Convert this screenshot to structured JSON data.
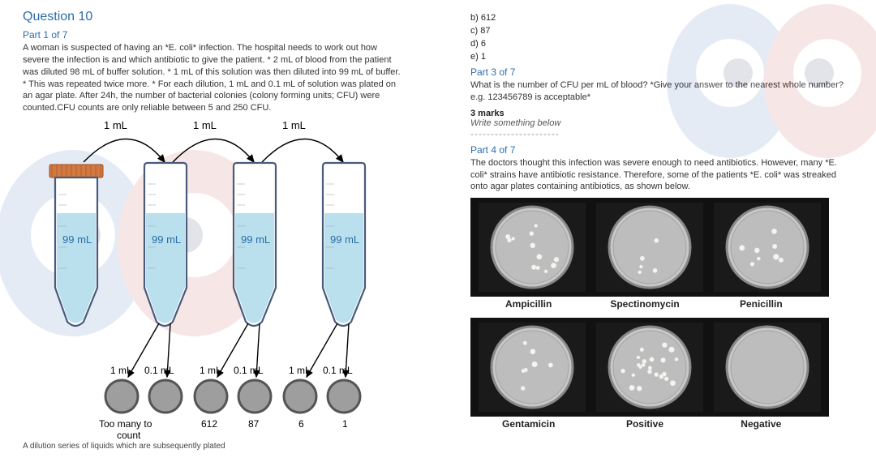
{
  "question_title": "Question 10",
  "part1": {
    "label": "Part 1 of 7",
    "text": "A woman is suspected of having an *E. coli* infection. The hospital needs to work out how severe the infection is and which antibiotic to give the patient. * 2 mL of blood from the patient was diluted 98 mL of buffer solution. * 1 mL of this solution was then diluted into 99 mL of buffer. * This was repeated twice more. * For each dilution, 1 mL and 0.1 mL of solution was plated on an agar plate. After 24h, the number of bacterial colonies (colony forming units; CFU) were counted.CFU counts are only reliable between 5 and 250 CFU."
  },
  "diagram": {
    "top_labels": [
      "1 mL",
      "1 mL",
      "1 mL"
    ],
    "tube_labels": [
      "99 mL",
      "99 mL",
      "99 mL",
      "99 mL"
    ],
    "plate_labels": [
      "1 mL",
      "0.1 mL",
      "1 mL",
      "0.1 mL",
      "1 mL",
      "0.1 mL"
    ],
    "counts": [
      "Too many to",
      "count",
      "612",
      "87",
      "6",
      "1"
    ],
    "caption_fragment": "A dilution series of liquids which are subsequently plated",
    "tube_fill": "#b9e0ec",
    "tube_stroke": "#4a5a7a",
    "cap_fill": "#d17843",
    "plate_fill": "#9e9e9e",
    "plate_stroke": "#555"
  },
  "options": {
    "b": "b)  612",
    "c": "c)  87",
    "d": "d)  6",
    "e": "e)  1"
  },
  "part3": {
    "label": "Part 3 of 7",
    "text": "What is the number of CFU per mL of blood? *Give your answer to the nearest whole number? e.g. 123456789 is acceptable*",
    "marks": "3 marks",
    "write": "Write something below",
    "dash": "----------------------"
  },
  "part4": {
    "label": "Part 4 of 7",
    "text": "The doctors thought this infection was severe enough to need antibiotics. However, many *E. coli* strains have antibiotic resistance. Therefore, some of the patients *E. coli* was streaked onto agar plates containing antibiotics, as shown below."
  },
  "petri": {
    "row1_labels": [
      "Ampicillin",
      "Spectinomycin",
      "Penicillin"
    ],
    "row2_labels": [
      "Gentamicin",
      "Positive",
      "Negative"
    ],
    "dish_fill": "#c7c7c7",
    "rim_stroke": "#888",
    "bg": "#111",
    "colony_counts_row1": [
      12,
      5,
      8
    ],
    "colony_counts_row2": [
      7,
      22,
      0
    ]
  },
  "ghost": {
    "eye_blue": "#2a5fb0",
    "eye_red": "#c63a3a"
  }
}
